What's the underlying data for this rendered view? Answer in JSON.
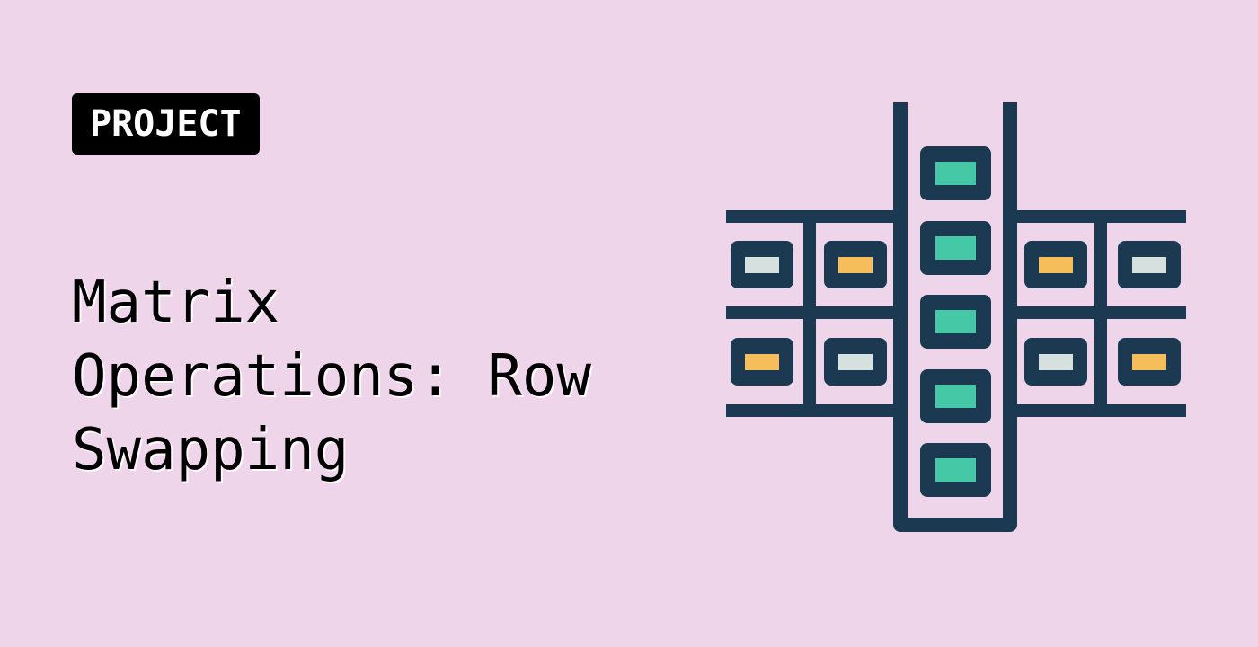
{
  "badge": {
    "label": "PROJECT"
  },
  "title": {
    "lines": [
      "Matrix",
      "Operations: Row",
      "Swapping"
    ]
  },
  "colors": {
    "background": "#EFD5EA",
    "badge_bg": "#000000",
    "badge_text": "#FFFFFF",
    "title_text": "#000000",
    "frame": "#1B3A52",
    "cell_teal": "#45C8A6",
    "cell_yellow": "#F5BE5A",
    "cell_gray": "#D6E0DF"
  },
  "illustration": {
    "icon": "matrix-row-swap-icon"
  }
}
